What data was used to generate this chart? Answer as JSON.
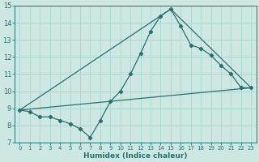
{
  "xlabel": "Humidex (Indice chaleur)",
  "xlim": [
    -0.5,
    23.5
  ],
  "ylim": [
    7,
    15
  ],
  "xticks": [
    0,
    1,
    2,
    3,
    4,
    5,
    6,
    7,
    8,
    9,
    10,
    11,
    12,
    13,
    14,
    15,
    16,
    17,
    18,
    19,
    20,
    21,
    22,
    23
  ],
  "yticks": [
    7,
    8,
    9,
    10,
    11,
    12,
    13,
    14,
    15
  ],
  "bg_color": "#cde8e3",
  "grid_color": "#b0d8d2",
  "line_color": "#2a7070",
  "line1_x": [
    0,
    1,
    2,
    3,
    4,
    5,
    6,
    7,
    8,
    9,
    10,
    11,
    12,
    13,
    14,
    15,
    16,
    17,
    18,
    19,
    20,
    21,
    22,
    23
  ],
  "line1_y": [
    8.9,
    8.8,
    8.5,
    8.5,
    8.3,
    8.1,
    7.8,
    7.3,
    8.3,
    9.4,
    10.0,
    11.0,
    12.2,
    13.5,
    14.4,
    14.8,
    13.8,
    12.7,
    12.5,
    12.1,
    11.5,
    11.0,
    10.2,
    10.2
  ],
  "line2_x": [
    0,
    23
  ],
  "line2_y": [
    8.9,
    10.2
  ],
  "line3_x": [
    0,
    15,
    23
  ],
  "line3_y": [
    8.9,
    14.8,
    10.2
  ],
  "xtick_fontsize": 5.0,
  "ytick_fontsize": 6.0,
  "xlabel_fontsize": 6.5
}
